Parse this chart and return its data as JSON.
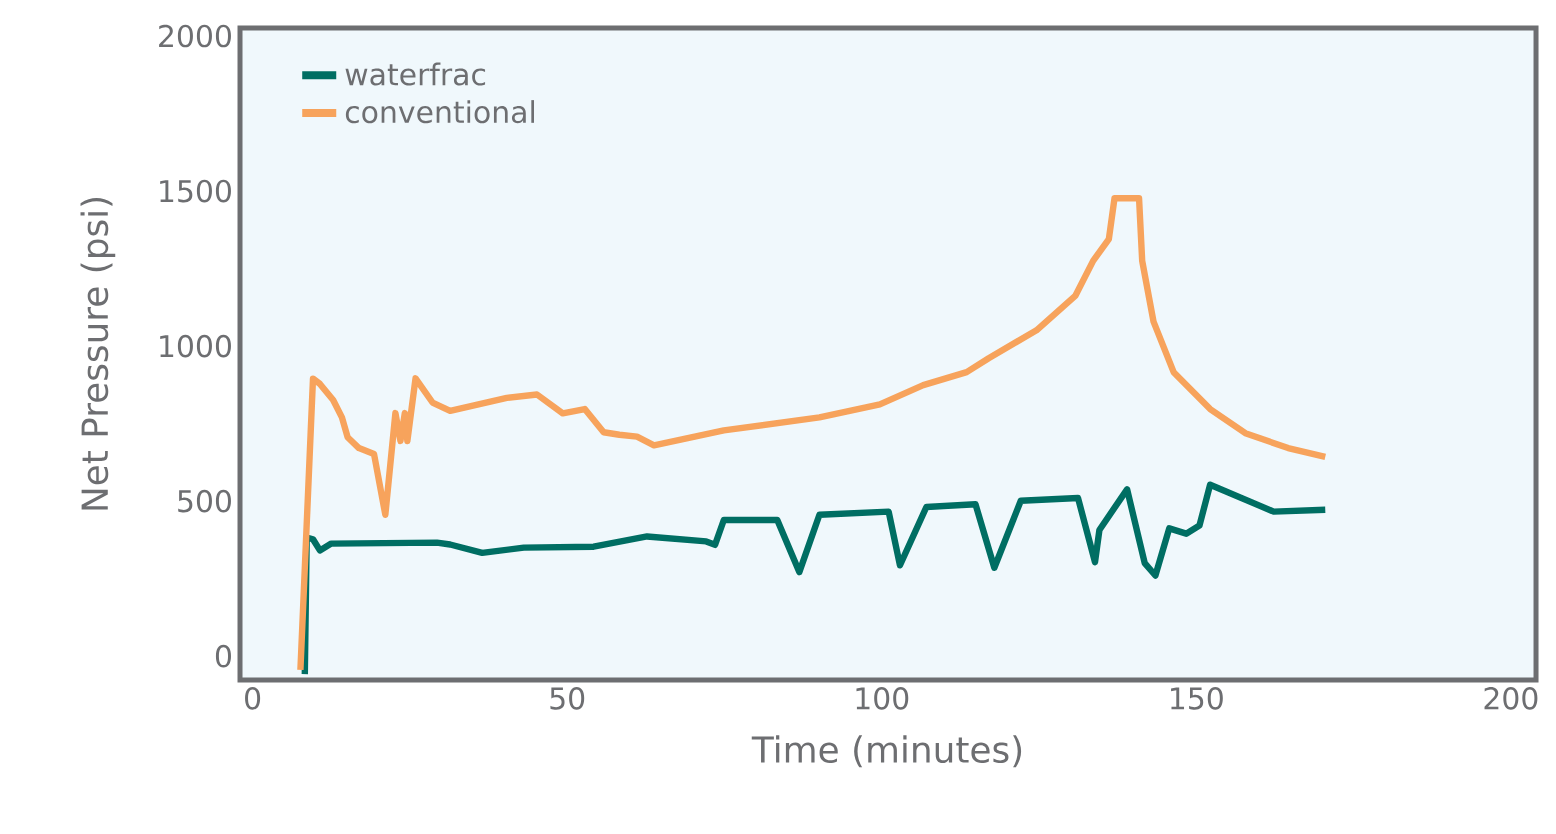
{
  "chart_data": {
    "type": "line",
    "xlabel": "Time (minutes)",
    "ylabel": "Net Pressure (psi)",
    "xlim": [
      -2,
      204
    ],
    "ylim": [
      -77,
      2026
    ],
    "xticks": [
      0,
      50,
      100,
      150,
      200
    ],
    "yticks": [
      0,
      500,
      1000,
      1500,
      2000
    ],
    "legend": "top left",
    "grid": false,
    "marker": "none",
    "line_style": "solid",
    "series": [
      {
        "name": "waterfrac",
        "color": "#006e63",
        "x": [
          8.3,
          8.6,
          9.6,
          10.7,
          12.5,
          29.3,
          31.4,
          36.5,
          43.1,
          54.2,
          62.7,
          72.1,
          73.5,
          74.9,
          83.4,
          86.9,
          90.1,
          101.1,
          102.9,
          107.1,
          114.9,
          117.9,
          122.1,
          131.2,
          133.9,
          134.6,
          139.0,
          141.8,
          143.5,
          145.7,
          148.4,
          150.5,
          152.2,
          162.3,
          170.5
        ],
        "values": [
          -58,
          382,
          377,
          341,
          363,
          366,
          360,
          333,
          350,
          353,
          386,
          370,
          359,
          439,
          439,
          271,
          456,
          466,
          293,
          481,
          490,
          285,
          501,
          510,
          303,
          407,
          538,
          300,
          260,
          412,
          395,
          421,
          553,
          466,
          472
        ]
      },
      {
        "name": "conventional",
        "color": "#f7a35c",
        "x": [
          7.6,
          9.6,
          10.7,
          12.8,
          14.2,
          15.1,
          16.9,
          19.3,
          21.1,
          22.7,
          23.5,
          24.2,
          24.6,
          25.9,
          28.6,
          31.4,
          40.4,
          45.2,
          49.3,
          52.8,
          55.8,
          58.3,
          61.1,
          63.8,
          74.9,
          90.1,
          99.7,
          106.6,
          113.5,
          117.0,
          124.6,
          130.8,
          133.6,
          136.1,
          137.0,
          140.9,
          141.4,
          143.2,
          146.4,
          152.2,
          157.8,
          164.6,
          170.5
        ],
        "values": [
          -44,
          895,
          878,
          826,
          770,
          706,
          671,
          652,
          456,
          784,
          694,
          784,
          694,
          896,
          818,
          791,
          833,
          844,
          783,
          797,
          722,
          714,
          708,
          680,
          728,
          770,
          812,
          874,
          916,
          961,
          1051,
          1163,
          1275,
          1345,
          1477,
          1477,
          1275,
          1079,
          916,
          797,
          719,
          671,
          643
        ]
      }
    ]
  }
}
